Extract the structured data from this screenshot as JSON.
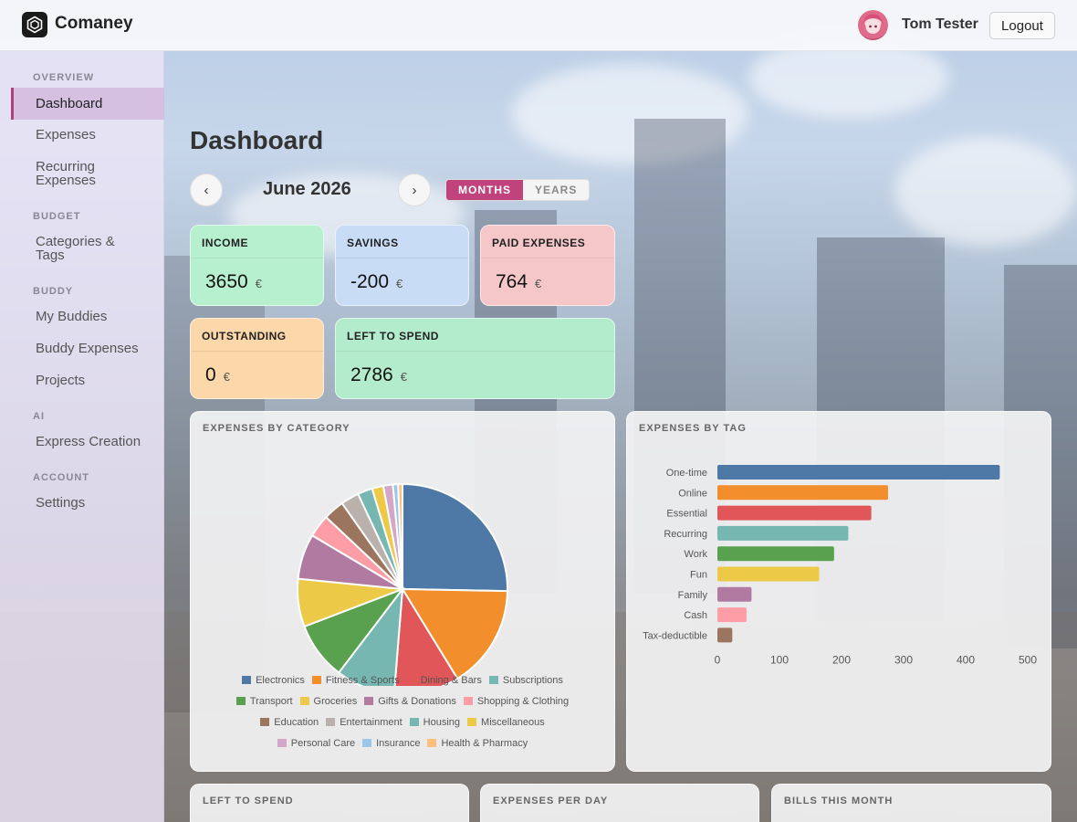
{
  "header": {
    "brand": "Comaney",
    "user_name": "Tom Tester",
    "logout_label": "Logout"
  },
  "sidebar": {
    "sections": [
      {
        "title": "OVERVIEW",
        "items": [
          {
            "label": "Dashboard",
            "active": true
          },
          {
            "label": "Expenses"
          },
          {
            "label": "Recurring Expenses"
          }
        ]
      },
      {
        "title": "BUDGET",
        "items": [
          {
            "label": "Categories & Tags"
          }
        ]
      },
      {
        "title": "BUDDY",
        "items": [
          {
            "label": "My Buddies"
          },
          {
            "label": "Buddy Expenses"
          },
          {
            "label": "Projects"
          }
        ]
      },
      {
        "title": "AI",
        "items": [
          {
            "label": "Express Creation"
          }
        ]
      },
      {
        "title": "ACCOUNT",
        "items": [
          {
            "label": "Settings"
          }
        ]
      }
    ]
  },
  "page": {
    "title": "Dashboard",
    "period_label": "June 2026",
    "prev_label": "‹",
    "next_label": "›",
    "toggle": {
      "months": "MONTHS",
      "years": "YEARS",
      "active": "months"
    }
  },
  "stats": [
    {
      "key": "income",
      "label": "INCOME",
      "value": "3650",
      "currency": "€",
      "color": "#b6f0cf"
    },
    {
      "key": "savings",
      "label": "SAVINGS",
      "value": "-200",
      "currency": "€",
      "color": "#c9dcf6"
    },
    {
      "key": "paid",
      "label": "PAID EXPENSES",
      "value": "764",
      "currency": "€",
      "color": "#f5c7c9"
    },
    {
      "key": "outstanding",
      "label": "OUTSTANDING",
      "value": "0",
      "currency": "€",
      "color": "#fbd7a9"
    },
    {
      "key": "left",
      "label": "LEFT TO SPEND",
      "value": "2786",
      "currency": "€",
      "color": "#b3eccd"
    }
  ],
  "panels": {
    "by_category": "EXPENSES BY CATEGORY",
    "by_tag": "EXPENSES BY TAG",
    "left_to_spend": "LEFT TO SPEND",
    "per_day": "EXPENSES PER DAY",
    "bills": "BILLS THIS MONTH"
  },
  "chart_data": [
    {
      "type": "pie",
      "title": "EXPENSES BY CATEGORY",
      "legend_position": "bottom",
      "slices": [
        {
          "label": "Electronics",
          "value": 189,
          "color": "#4e79a7"
        },
        {
          "label": "Fitness & Sports",
          "value": 119,
          "color": "#f28e2b"
        },
        {
          "label": "Dining & Bars",
          "value": 75,
          "color": "#e15759"
        },
        {
          "label": "Subscriptions",
          "value": 68,
          "color": "#76b7b2"
        },
        {
          "label": "Transport",
          "value": 66,
          "color": "#59a14f"
        },
        {
          "label": "Groceries",
          "value": 55,
          "color": "#edc948"
        },
        {
          "label": "Gifts & Donations",
          "value": 52,
          "color": "#b07aa1"
        },
        {
          "label": "Shopping & Clothing",
          "value": 26,
          "color": "#ff9da7"
        },
        {
          "label": "Education",
          "value": 24,
          "color": "#9c755f"
        },
        {
          "label": "Entertainment",
          "value": 21,
          "color": "#bab0ac"
        },
        {
          "label": "Housing",
          "value": 17,
          "color": "#76b7b2"
        },
        {
          "label": "Miscellaneous",
          "value": 13,
          "color": "#edc948"
        },
        {
          "label": "Personal Care",
          "value": 11,
          "color": "#d4a6c8"
        },
        {
          "label": "Insurance",
          "value": 6,
          "color": "#9dc7e8"
        },
        {
          "label": "Health & Pharmacy",
          "value": 5,
          "color": "#ffbe7d"
        }
      ]
    },
    {
      "type": "bar",
      "orientation": "horizontal",
      "title": "EXPENSES BY TAG",
      "categories": [
        "One-time",
        "Online",
        "Essential",
        "Recurring",
        "Work",
        "Fun",
        "Family",
        "Cash",
        "Tax-deductible"
      ],
      "values": [
        455,
        275,
        248,
        211,
        188,
        164,
        55,
        47,
        24
      ],
      "colors": [
        "#4e79a7",
        "#f28e2b",
        "#e15759",
        "#76b7b2",
        "#59a14f",
        "#edc948",
        "#b07aa1",
        "#ff9da7",
        "#9c755f"
      ],
      "xlim": [
        0,
        500
      ],
      "xticks": [
        0,
        100,
        200,
        300,
        400,
        500
      ],
      "grid": false
    }
  ]
}
